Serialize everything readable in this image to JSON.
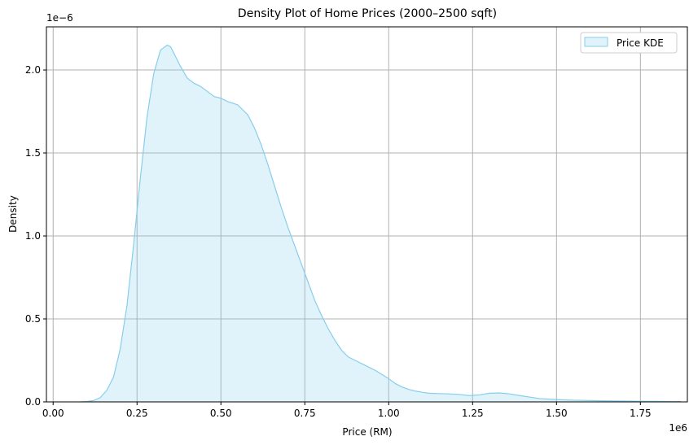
{
  "chart_data": {
    "type": "area",
    "title": "Density Plot of Home Prices (2000–2500 sqft)",
    "xlabel": "Price (RM)",
    "ylabel": "Density",
    "x_offset_label": "1e6",
    "y_offset_label": "1e−6",
    "x_ticks": [
      "0.00",
      "0.25",
      "0.50",
      "0.75",
      "1.00",
      "1.25",
      "1.50",
      "1.75"
    ],
    "y_ticks": [
      "0.0",
      "0.5",
      "1.0",
      "1.5",
      "2.0"
    ],
    "xlim": [
      -0.02,
      1.89
    ],
    "ylim": [
      0,
      2.26
    ],
    "grid": true,
    "legend_position": "top-right",
    "series": [
      {
        "name": "Price KDE",
        "fill_color": "#87ceeb",
        "line_color": "#87ceeb",
        "x": [
          0.08,
          0.1,
          0.12,
          0.14,
          0.16,
          0.18,
          0.2,
          0.22,
          0.24,
          0.26,
          0.28,
          0.3,
          0.32,
          0.34,
          0.35,
          0.36,
          0.38,
          0.4,
          0.42,
          0.44,
          0.46,
          0.48,
          0.5,
          0.52,
          0.55,
          0.58,
          0.6,
          0.62,
          0.64,
          0.66,
          0.68,
          0.7,
          0.72,
          0.74,
          0.76,
          0.78,
          0.8,
          0.82,
          0.84,
          0.86,
          0.88,
          0.9,
          0.92,
          0.94,
          0.96,
          0.98,
          1.0,
          1.02,
          1.04,
          1.06,
          1.08,
          1.1,
          1.12,
          1.15,
          1.18,
          1.21,
          1.24,
          1.27,
          1.3,
          1.33,
          1.36,
          1.4,
          1.45,
          1.5,
          1.55,
          1.6,
          1.65,
          1.7,
          1.75,
          1.8,
          1.87
        ],
        "y": [
          0.0,
          0.002,
          0.008,
          0.025,
          0.07,
          0.15,
          0.32,
          0.58,
          0.95,
          1.35,
          1.72,
          1.98,
          2.12,
          2.15,
          2.14,
          2.1,
          2.02,
          1.95,
          1.92,
          1.9,
          1.87,
          1.84,
          1.83,
          1.81,
          1.79,
          1.73,
          1.65,
          1.55,
          1.43,
          1.3,
          1.17,
          1.05,
          0.94,
          0.83,
          0.72,
          0.61,
          0.52,
          0.44,
          0.37,
          0.31,
          0.27,
          0.25,
          0.23,
          0.21,
          0.19,
          0.165,
          0.14,
          0.11,
          0.09,
          0.075,
          0.065,
          0.058,
          0.052,
          0.05,
          0.048,
          0.045,
          0.038,
          0.042,
          0.052,
          0.054,
          0.048,
          0.035,
          0.02,
          0.014,
          0.01,
          0.008,
          0.006,
          0.005,
          0.004,
          0.003,
          0.002
        ]
      }
    ]
  }
}
